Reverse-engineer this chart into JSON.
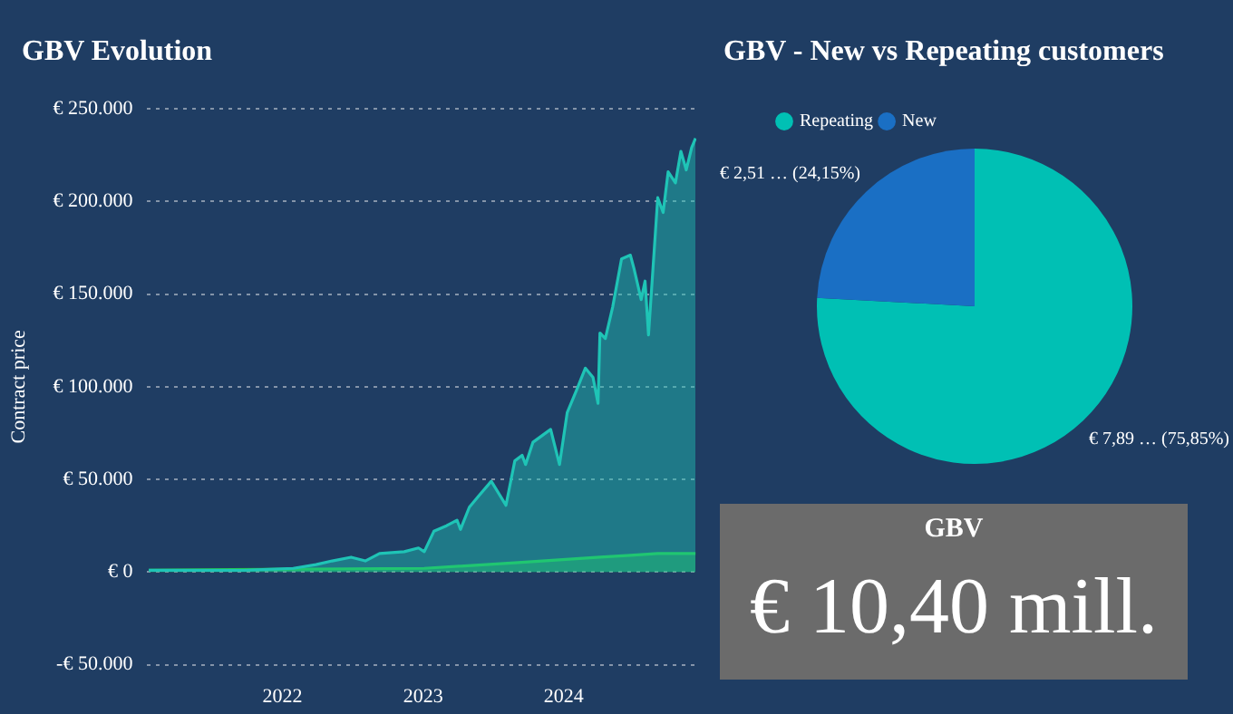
{
  "chart_data": [
    {
      "type": "area",
      "title": "GBV Evolution",
      "ylabel": "Contract price",
      "xlim": [
        "2021-01-15",
        "2024-12-10"
      ],
      "xticks": [
        "2022",
        "2023",
        "2024"
      ],
      "ylim": [
        -50000,
        250000
      ],
      "yticks": [
        {
          "value": -50000,
          "label": "-€ 50.000"
        },
        {
          "value": 0,
          "label": "€ 0"
        },
        {
          "value": 50000,
          "label": "€ 50.000"
        },
        {
          "value": 100000,
          "label": "€ 100.000"
        },
        {
          "value": 150000,
          "label": "€ 150.000"
        },
        {
          "value": 200000,
          "label": "€ 200.000"
        },
        {
          "value": 250000,
          "label": "€ 250.000"
        }
      ],
      "grid": "y",
      "legend": false,
      "series": [
        {
          "color": "#1fc4b6",
          "x": [
            "2021-01-19",
            "2021-09-24",
            "2022-01-29",
            "2022-03-29",
            "2022-05-10",
            "2022-06-28",
            "2022-08-04",
            "2022-09-10",
            "2022-11-13",
            "2022-12-20",
            "2023-01-04",
            "2023-01-29",
            "2023-03-03",
            "2023-03-30",
            "2023-04-08",
            "2023-05-01",
            "2023-05-25",
            "2023-06-27",
            "2023-08-04",
            "2023-08-27",
            "2023-09-15",
            "2023-09-24",
            "2023-10-13",
            "2023-11-28",
            "2023-12-21",
            "2024-01-10",
            "2024-02-03",
            "2024-02-26",
            "2024-03-17",
            "2024-03-30",
            "2024-04-04",
            "2024-04-18",
            "2024-05-07",
            "2024-05-30",
            "2024-06-22",
            "2024-07-01",
            "2024-07-20",
            "2024-07-30",
            "2024-08-08",
            "2024-09-01",
            "2024-09-15",
            "2024-09-28",
            "2024-10-17",
            "2024-10-31",
            "2024-11-14",
            "2024-11-28",
            "2024-12-08"
          ],
          "values": [
            1000,
            1000,
            2000,
            4000,
            6000,
            8000,
            6000,
            10000,
            11000,
            13000,
            11000,
            22000,
            25000,
            28000,
            23000,
            35000,
            41000,
            49000,
            36000,
            60000,
            63000,
            58000,
            70000,
            77000,
            58000,
            86000,
            98000,
            110000,
            105000,
            91000,
            129000,
            126000,
            143000,
            169000,
            171000,
            164000,
            147000,
            157000,
            128000,
            202000,
            194000,
            216000,
            210000,
            227000,
            217000,
            229000,
            234000
          ]
        },
        {
          "color": "#22c83a",
          "x": [
            "2021-01-19",
            "2023-01-04",
            "2023-08-27",
            "2024-04-04",
            "2024-06-22",
            "2024-09-01",
            "2024-12-08"
          ],
          "values": [
            1000,
            2000,
            5000,
            8000,
            9000,
            10000,
            10000
          ]
        }
      ]
    },
    {
      "type": "pie",
      "title": "GBV - New vs Repeating customers",
      "categories": [
        "Repeating",
        "New"
      ],
      "values": [
        75.85,
        24.15
      ],
      "colors": [
        "#00c0b4",
        "#1a6fc4"
      ],
      "value_labels": [
        "€ 7,89 … (75,85%)",
        "€ 2,51 … (24,15%)"
      ],
      "legend": "top left"
    },
    {
      "type": "other",
      "title": "GBV",
      "annotations": [
        "€ 10,40 mill."
      ]
    }
  ]
}
